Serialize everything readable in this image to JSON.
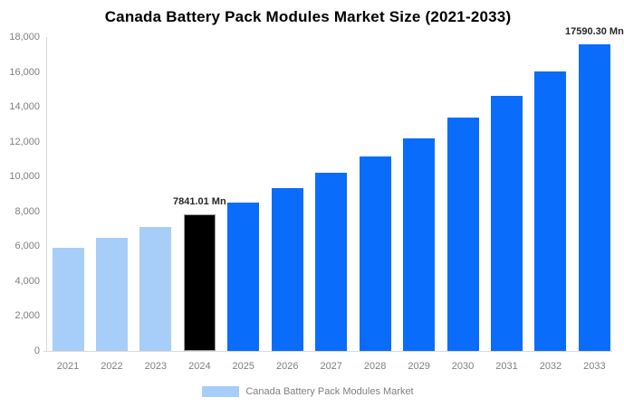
{
  "title": "Canada Battery Pack Modules Market Size (2021-2033)",
  "colors": {
    "historical": "#a6cef8",
    "highlight": "#000000",
    "highlight_border": "#999999",
    "forecast": "#0a6cfb",
    "axis": "#d9d9d9",
    "tick_text": "#7f7f7f",
    "label_text": "#262626"
  },
  "legend": {
    "label": "Canada Battery Pack Modules Market",
    "swatch_color": "#a6cef8"
  },
  "chart_data": {
    "type": "bar",
    "title": "Canada Battery Pack Modules Market Size (2021-2033)",
    "xlabel": "",
    "ylabel": "",
    "categories": [
      "2021",
      "2022",
      "2023",
      "2024",
      "2025",
      "2026",
      "2027",
      "2028",
      "2029",
      "2030",
      "2031",
      "2032",
      "2033"
    ],
    "values": [
      5930,
      6510,
      7100,
      7841.01,
      8500,
      9320,
      10210,
      11130,
      12210,
      13410,
      14610,
      16020,
      17590.3
    ],
    "roles": [
      "historical",
      "historical",
      "historical",
      "highlight",
      "forecast",
      "forecast",
      "forecast",
      "forecast",
      "forecast",
      "forecast",
      "forecast",
      "forecast",
      "forecast"
    ],
    "ylim": [
      0,
      18000
    ],
    "ytick_step": 2000,
    "ytick_labels": [
      "0",
      "2,000",
      "4,000",
      "6,000",
      "8,000",
      "10,000",
      "12,000",
      "14,000",
      "16,000",
      "18,000"
    ],
    "grid": false,
    "legend_position": "bottom",
    "annotations": [
      {
        "category": "2024",
        "text": "7841.01 Mn"
      },
      {
        "category": "2033",
        "text": "17590.30 Mn"
      }
    ]
  }
}
